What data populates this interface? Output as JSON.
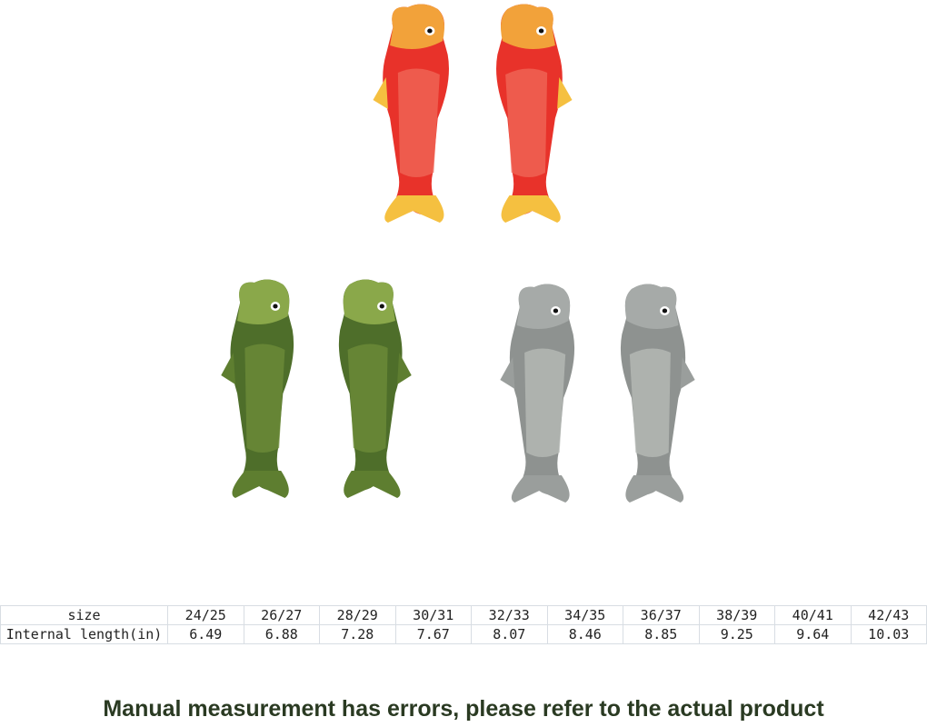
{
  "products": [
    {
      "name": "red",
      "colors": {
        "body": "#e8322a",
        "belly": "#f06a5a",
        "head": "#f2a23a",
        "fin": "#f5c040"
      }
    },
    {
      "name": "green",
      "colors": {
        "body": "#4e6e2a",
        "belly": "#6f8d3a",
        "head": "#8aa84a",
        "fin": "#5e7e30"
      }
    },
    {
      "name": "grey",
      "colors": {
        "body": "#8e9290",
        "belly": "#b8bcb8",
        "head": "#a6aaa8",
        "fin": "#9a9e9c"
      }
    }
  ],
  "size_table": {
    "row_headers": [
      "size",
      "Internal length(in)"
    ],
    "sizes": [
      "24/25",
      "26/27",
      "28/29",
      "30/31",
      "32/33",
      "34/35",
      "36/37",
      "38/39",
      "40/41",
      "42/43"
    ],
    "lengths": [
      "6.49",
      "6.88",
      "7.28",
      "7.67",
      "8.07",
      "8.46",
      "8.85",
      "9.25",
      "9.64",
      "10.03"
    ]
  },
  "note": "Manual measurement has errors, please refer to the actual product"
}
